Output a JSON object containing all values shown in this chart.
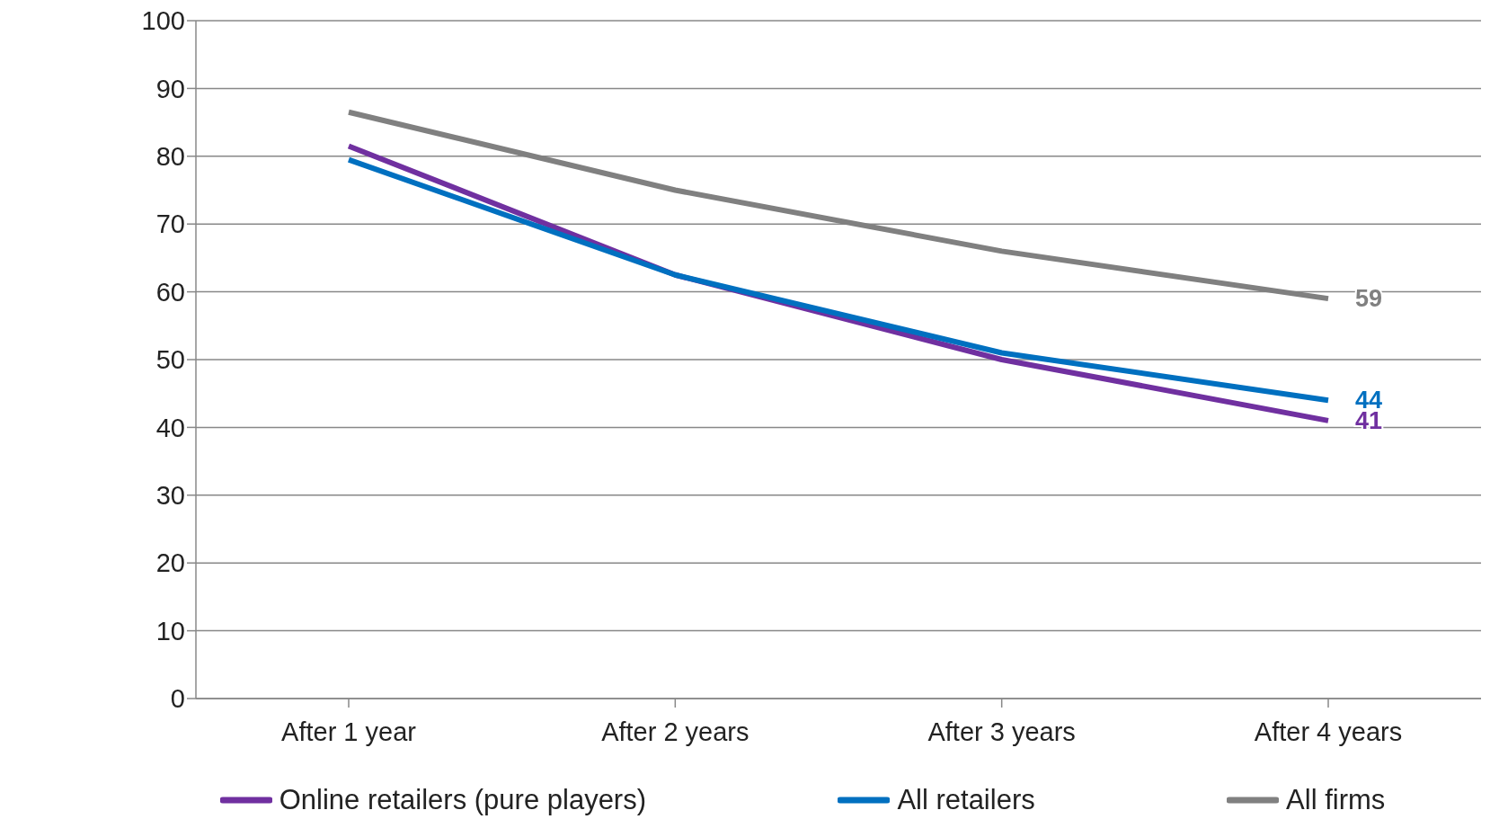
{
  "chart_data": {
    "type": "line",
    "categories": [
      "After 1 year",
      "After 2 years",
      "After 3 years",
      "After 4 years"
    ],
    "series": [
      {
        "name": "Online retailers (pure players)",
        "color": "#7030a0",
        "values": [
          81.5,
          62.5,
          50,
          41
        ],
        "value_labels": [
          null,
          null,
          null,
          "41"
        ]
      },
      {
        "name": "All retailers",
        "color": "#0070c0",
        "values": [
          79.5,
          62.5,
          51,
          44
        ],
        "value_labels": [
          null,
          null,
          null,
          "44"
        ]
      },
      {
        "name": "All firms",
        "color": "#808080",
        "values": [
          86.5,
          75,
          66,
          59
        ],
        "value_labels": [
          null,
          null,
          null,
          "59"
        ]
      }
    ],
    "ylim": [
      0,
      100
    ],
    "yticks": [
      0,
      10,
      20,
      30,
      40,
      50,
      60,
      70,
      80,
      90,
      100
    ],
    "grid": "y",
    "legend": "bottom",
    "marker": "none",
    "line_style": "solid"
  }
}
